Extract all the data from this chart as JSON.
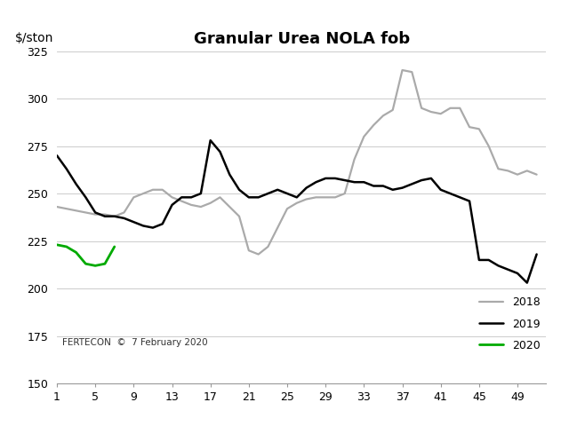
{
  "title": "Granular Urea NOLA fob",
  "ylabel": "$/ston",
  "xlim": [
    1,
    52
  ],
  "ylim": [
    150,
    325
  ],
  "yticks": [
    150,
    175,
    200,
    225,
    250,
    275,
    300,
    325
  ],
  "xticks": [
    1,
    5,
    9,
    13,
    17,
    21,
    25,
    29,
    33,
    37,
    41,
    45,
    49
  ],
  "watermark": "FERTECON  ©  7 February 2020",
  "background_color": "#ffffff",
  "grid_color": "#cccccc",
  "series": {
    "2018": {
      "color": "#aaaaaa",
      "x": [
        1,
        2,
        3,
        4,
        5,
        6,
        7,
        8,
        9,
        10,
        11,
        12,
        13,
        14,
        15,
        16,
        17,
        18,
        19,
        20,
        21,
        22,
        23,
        24,
        25,
        26,
        27,
        28,
        29,
        30,
        31,
        32,
        33,
        34,
        35,
        36,
        37,
        38,
        39,
        40,
        41,
        42,
        43,
        44,
        45,
        46,
        47,
        48,
        49,
        50,
        51
      ],
      "y": [
        243,
        242,
        241,
        240,
        239,
        239,
        238,
        240,
        248,
        250,
        252,
        252,
        248,
        246,
        244,
        243,
        245,
        248,
        243,
        238,
        220,
        218,
        222,
        232,
        242,
        245,
        247,
        248,
        248,
        248,
        250,
        268,
        280,
        286,
        291,
        294,
        315,
        314,
        295,
        293,
        292,
        295,
        295,
        285,
        284,
        275,
        263,
        262,
        260,
        262,
        260
      ]
    },
    "2019": {
      "color": "#000000",
      "x": [
        1,
        2,
        3,
        4,
        5,
        6,
        7,
        8,
        9,
        10,
        11,
        12,
        13,
        14,
        15,
        16,
        17,
        18,
        19,
        20,
        21,
        22,
        23,
        24,
        25,
        26,
        27,
        28,
        29,
        30,
        31,
        32,
        33,
        34,
        35,
        36,
        37,
        38,
        39,
        40,
        41,
        42,
        43,
        44,
        45,
        46,
        47,
        48,
        49,
        50,
        51
      ],
      "y": [
        270,
        263,
        255,
        248,
        240,
        238,
        238,
        237,
        235,
        233,
        232,
        234,
        244,
        248,
        248,
        250,
        278,
        272,
        260,
        252,
        248,
        248,
        250,
        252,
        250,
        248,
        253,
        256,
        258,
        258,
        257,
        256,
        256,
        254,
        254,
        252,
        253,
        255,
        257,
        258,
        252,
        250,
        248,
        246,
        215,
        215,
        212,
        210,
        208,
        203,
        218
      ]
    },
    "2020": {
      "color": "#00aa00",
      "x": [
        1,
        2,
        3,
        4,
        5,
        6,
        7
      ],
      "y": [
        223,
        222,
        219,
        213,
        212,
        213,
        222
      ]
    }
  }
}
